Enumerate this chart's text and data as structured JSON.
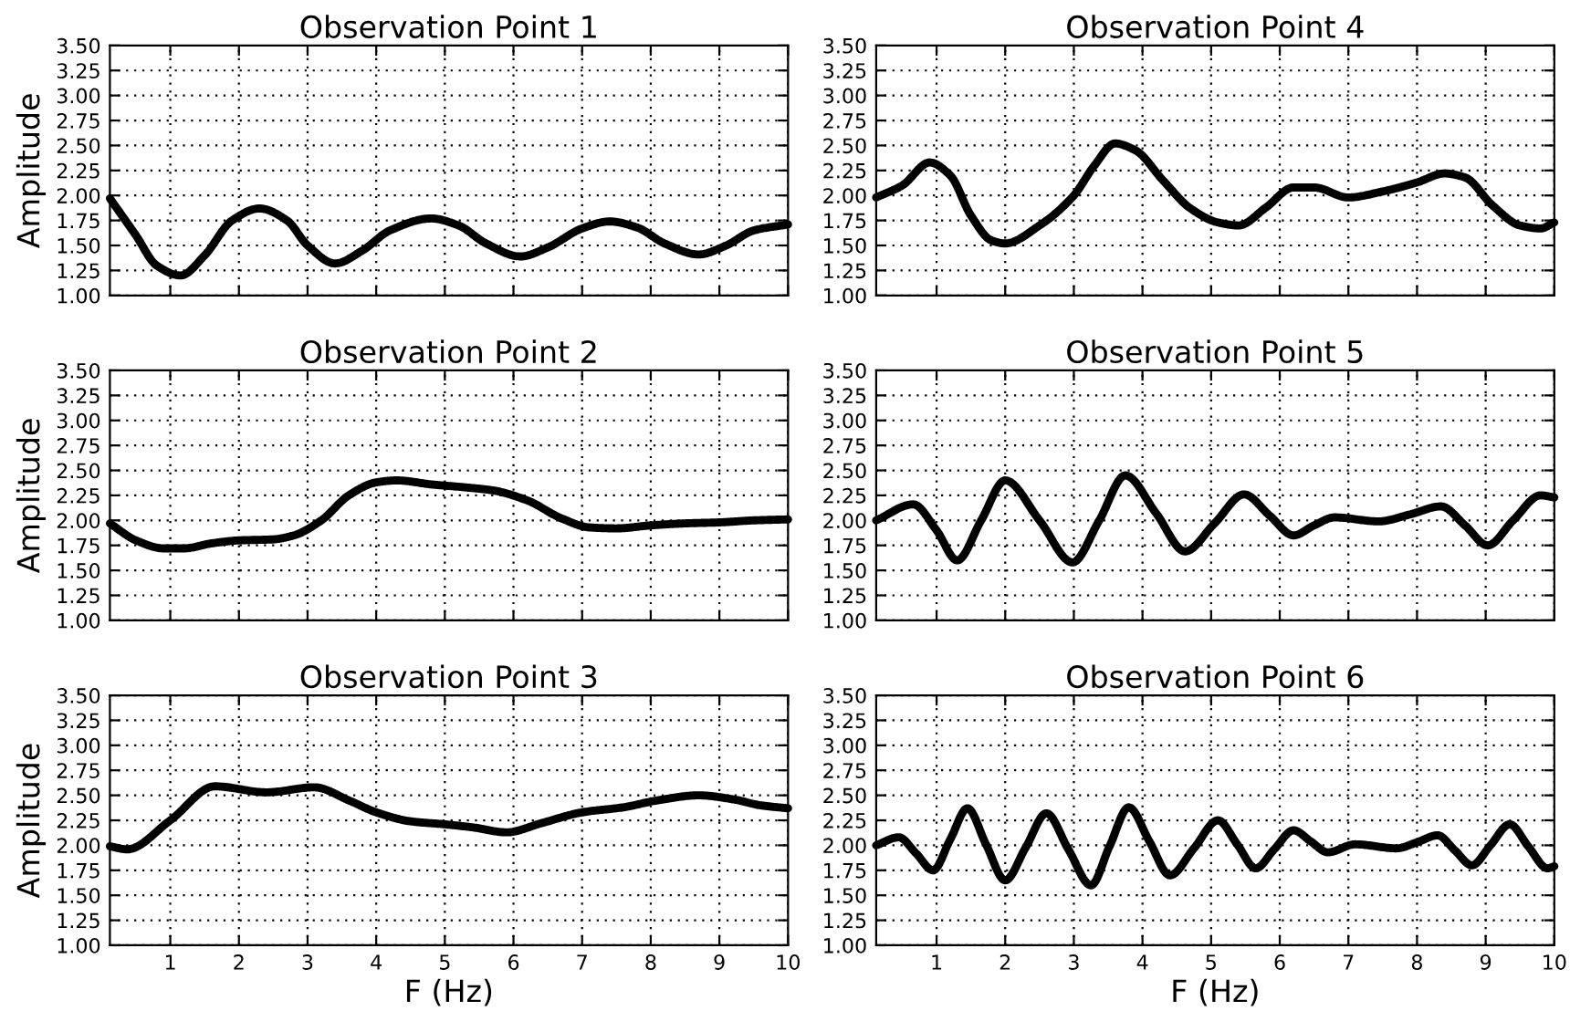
{
  "chart_data": [
    {
      "type": "line",
      "title": "Observation Point 1",
      "ylabel": "Amplitude",
      "color": "#000000",
      "grid": true,
      "tick_labels": "y",
      "xlim": [
        0.12,
        10
      ],
      "ylim": [
        1.0,
        3.5
      ],
      "xticks": [
        1,
        2,
        3,
        4,
        5,
        6,
        7,
        8,
        9,
        10
      ],
      "yticks": [
        {
          "value": 1.0,
          "label": "1.00"
        },
        {
          "value": 1.25,
          "label": "1.25"
        },
        {
          "value": 1.5,
          "label": "1.50"
        },
        {
          "value": 1.75,
          "label": "1.75"
        },
        {
          "value": 2.0,
          "label": "2.00"
        },
        {
          "value": 2.25,
          "label": "2.25"
        },
        {
          "value": 2.5,
          "label": "2.50"
        },
        {
          "value": 2.75,
          "label": "2.75"
        },
        {
          "value": 3.0,
          "label": "3.00"
        },
        {
          "value": 3.25,
          "label": "3.25"
        },
        {
          "value": 3.5,
          "label": "3.50"
        }
      ],
      "x": [
        0.12,
        0.5,
        0.8,
        1.15,
        1.5,
        1.9,
        2.3,
        2.7,
        3.0,
        3.4,
        3.8,
        4.2,
        4.8,
        5.2,
        5.6,
        6.1,
        6.5,
        7.0,
        7.4,
        7.8,
        8.2,
        8.7,
        9.1,
        9.5,
        10
      ],
      "values": [
        1.97,
        1.6,
        1.3,
        1.2,
        1.4,
        1.75,
        1.87,
        1.75,
        1.5,
        1.32,
        1.45,
        1.65,
        1.77,
        1.7,
        1.52,
        1.39,
        1.48,
        1.67,
        1.74,
        1.68,
        1.52,
        1.41,
        1.5,
        1.65,
        1.71
      ]
    },
    {
      "type": "line",
      "title": "Observation Point 4",
      "color": "#000000",
      "grid": true,
      "tick_labels": "y",
      "xlim": [
        0.12,
        10
      ],
      "ylim": [
        1.0,
        3.5
      ],
      "xticks": [
        1,
        2,
        3,
        4,
        5,
        6,
        7,
        8,
        9,
        10
      ],
      "yticks": [
        {
          "value": 1.0,
          "label": "1.00"
        },
        {
          "value": 1.25,
          "label": "1.25"
        },
        {
          "value": 1.5,
          "label": "1.50"
        },
        {
          "value": 1.75,
          "label": "1.75"
        },
        {
          "value": 2.0,
          "label": "2.00"
        },
        {
          "value": 2.25,
          "label": "2.25"
        },
        {
          "value": 2.5,
          "label": "2.50"
        },
        {
          "value": 2.75,
          "label": "2.75"
        },
        {
          "value": 3.0,
          "label": "3.00"
        },
        {
          "value": 3.25,
          "label": "3.25"
        },
        {
          "value": 3.5,
          "label": "3.50"
        }
      ],
      "x": [
        0.12,
        0.5,
        0.9,
        1.2,
        1.5,
        1.8,
        2.0,
        2.5,
        3.0,
        3.3,
        3.6,
        3.9,
        4.3,
        4.7,
        5.1,
        5.4,
        5.8,
        6.2,
        6.5,
        7.0,
        7.5,
        8.0,
        8.4,
        8.7,
        9.1,
        9.5,
        9.8,
        10
      ],
      "values": [
        1.98,
        2.1,
        2.33,
        2.2,
        1.8,
        1.55,
        1.52,
        1.7,
        2.0,
        2.3,
        2.52,
        2.45,
        2.15,
        1.87,
        1.73,
        1.7,
        1.88,
        2.08,
        2.08,
        1.98,
        2.04,
        2.13,
        2.22,
        2.18,
        1.9,
        1.7,
        1.67,
        1.73
      ]
    },
    {
      "type": "line",
      "title": "Observation Point 2",
      "ylabel": "Amplitude",
      "color": "#000000",
      "grid": true,
      "tick_labels": "y",
      "xlim": [
        0.12,
        10
      ],
      "ylim": [
        1.0,
        3.5
      ],
      "xticks": [
        1,
        2,
        3,
        4,
        5,
        6,
        7,
        8,
        9,
        10
      ],
      "yticks": [
        {
          "value": 1.0,
          "label": "1.00"
        },
        {
          "value": 1.25,
          "label": "1.25"
        },
        {
          "value": 1.5,
          "label": "1.50"
        },
        {
          "value": 1.75,
          "label": "1.75"
        },
        {
          "value": 2.0,
          "label": "2.00"
        },
        {
          "value": 2.25,
          "label": "2.25"
        },
        {
          "value": 2.5,
          "label": "2.50"
        },
        {
          "value": 2.75,
          "label": "2.75"
        },
        {
          "value": 3.0,
          "label": "3.00"
        },
        {
          "value": 3.25,
          "label": "3.25"
        },
        {
          "value": 3.5,
          "label": "3.50"
        }
      ],
      "x": [
        0.12,
        0.5,
        0.9,
        1.2,
        1.6,
        2.0,
        2.5,
        2.8,
        3.2,
        3.6,
        4.0,
        4.3,
        4.8,
        5.3,
        5.7,
        6.2,
        6.7,
        7.1,
        7.5,
        8.0,
        8.5,
        9.0,
        9.5,
        10
      ],
      "values": [
        1.97,
        1.8,
        1.72,
        1.72,
        1.77,
        1.8,
        1.81,
        1.85,
        2.0,
        2.25,
        2.38,
        2.4,
        2.36,
        2.33,
        2.3,
        2.2,
        2.02,
        1.93,
        1.92,
        1.95,
        1.97,
        1.98,
        2.0,
        2.01
      ]
    },
    {
      "type": "line",
      "title": "Observation Point 5",
      "color": "#000000",
      "grid": true,
      "tick_labels": "y",
      "xlim": [
        0.12,
        10
      ],
      "ylim": [
        1.0,
        3.5
      ],
      "xticks": [
        1,
        2,
        3,
        4,
        5,
        6,
        7,
        8,
        9,
        10
      ],
      "yticks": [
        {
          "value": 1.0,
          "label": "1.00"
        },
        {
          "value": 1.25,
          "label": "1.25"
        },
        {
          "value": 1.5,
          "label": "1.50"
        },
        {
          "value": 1.75,
          "label": "1.75"
        },
        {
          "value": 2.0,
          "label": "2.00"
        },
        {
          "value": 2.25,
          "label": "2.25"
        },
        {
          "value": 2.5,
          "label": "2.50"
        },
        {
          "value": 2.75,
          "label": "2.75"
        },
        {
          "value": 3.0,
          "label": "3.00"
        },
        {
          "value": 3.25,
          "label": "3.25"
        },
        {
          "value": 3.5,
          "label": "3.50"
        }
      ],
      "x": [
        0.12,
        0.66,
        1.0,
        1.3,
        1.65,
        2.0,
        2.5,
        2.98,
        3.37,
        3.75,
        4.2,
        4.62,
        5.05,
        5.48,
        5.85,
        6.2,
        6.5,
        6.8,
        7.44,
        7.9,
        8.35,
        8.7,
        9.03,
        9.4,
        9.8,
        10
      ],
      "values": [
        2.0,
        2.16,
        1.9,
        1.6,
        2.0,
        2.4,
        2.0,
        1.58,
        2.0,
        2.45,
        2.07,
        1.69,
        1.97,
        2.26,
        2.05,
        1.85,
        1.95,
        2.03,
        1.99,
        2.06,
        2.14,
        1.95,
        1.75,
        2.0,
        2.25,
        2.23
      ]
    },
    {
      "type": "line",
      "title": "Observation Point 3",
      "xlabel": "F (Hz)",
      "ylabel": "Amplitude",
      "color": "#000000",
      "grid": true,
      "xlim": [
        0.12,
        10
      ],
      "ylim": [
        1.0,
        3.5
      ],
      "xticks": [
        1,
        2,
        3,
        4,
        5,
        6,
        7,
        8,
        9,
        10
      ],
      "yticks": [
        {
          "value": 1.0,
          "label": "1.00"
        },
        {
          "value": 1.25,
          "label": "1.25"
        },
        {
          "value": 1.5,
          "label": "1.50"
        },
        {
          "value": 1.75,
          "label": "1.75"
        },
        {
          "value": 2.0,
          "label": "2.00"
        },
        {
          "value": 2.25,
          "label": "2.25"
        },
        {
          "value": 2.5,
          "label": "2.50"
        },
        {
          "value": 2.75,
          "label": "2.75"
        },
        {
          "value": 3.0,
          "label": "3.00"
        },
        {
          "value": 3.25,
          "label": "3.25"
        },
        {
          "value": 3.5,
          "label": "3.50"
        }
      ],
      "x": [
        0.12,
        0.37,
        1.0,
        1.65,
        2.4,
        3.1,
        3.6,
        4.0,
        4.5,
        5.0,
        5.4,
        5.9,
        6.4,
        7.0,
        7.6,
        8.1,
        8.7,
        9.2,
        9.6,
        10
      ],
      "values": [
        1.99,
        1.96,
        2.25,
        2.59,
        2.53,
        2.58,
        2.45,
        2.33,
        2.24,
        2.21,
        2.18,
        2.13,
        2.22,
        2.33,
        2.38,
        2.45,
        2.5,
        2.46,
        2.4,
        2.37
      ]
    },
    {
      "type": "line",
      "title": "Observation Point 6",
      "xlabel": "F (Hz)",
      "color": "#000000",
      "grid": true,
      "xlim": [
        0.12,
        10
      ],
      "ylim": [
        1.0,
        3.5
      ],
      "xticks": [
        1,
        2,
        3,
        4,
        5,
        6,
        7,
        8,
        9,
        10
      ],
      "yticks": [
        {
          "value": 1.0,
          "label": "1.00"
        },
        {
          "value": 1.25,
          "label": "1.25"
        },
        {
          "value": 1.5,
          "label": "1.50"
        },
        {
          "value": 1.75,
          "label": "1.75"
        },
        {
          "value": 2.0,
          "label": "2.00"
        },
        {
          "value": 2.25,
          "label": "2.25"
        },
        {
          "value": 2.5,
          "label": "2.50"
        },
        {
          "value": 2.75,
          "label": "2.75"
        },
        {
          "value": 3.0,
          "label": "3.00"
        },
        {
          "value": 3.25,
          "label": "3.25"
        },
        {
          "value": 3.5,
          "label": "3.50"
        }
      ],
      "x": [
        0.12,
        0.45,
        0.7,
        0.95,
        1.2,
        1.45,
        1.72,
        2.0,
        2.3,
        2.6,
        2.92,
        3.25,
        3.52,
        3.8,
        4.1,
        4.4,
        4.75,
        5.1,
        5.38,
        5.65,
        5.92,
        6.2,
        6.45,
        6.7,
        7.1,
        7.7,
        8.0,
        8.3,
        8.55,
        8.8,
        9.07,
        9.35,
        9.62,
        9.9,
        10
      ],
      "values": [
        2.0,
        2.08,
        1.92,
        1.75,
        2.06,
        2.37,
        2.01,
        1.65,
        1.98,
        2.32,
        1.96,
        1.6,
        1.99,
        2.38,
        2.04,
        1.7,
        1.97,
        2.25,
        2.01,
        1.77,
        1.96,
        2.15,
        2.04,
        1.93,
        2.01,
        1.97,
        2.03,
        2.1,
        1.95,
        1.8,
        2.0,
        2.21,
        1.99,
        1.77,
        1.79
      ]
    }
  ]
}
